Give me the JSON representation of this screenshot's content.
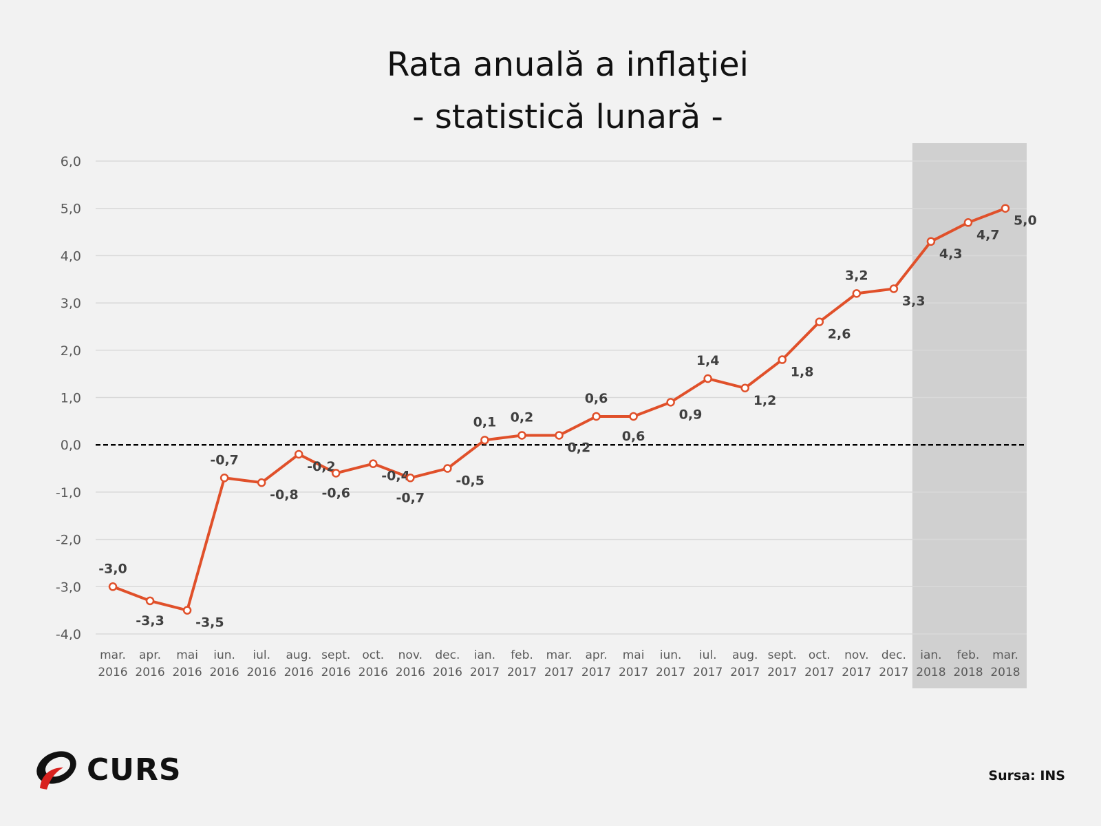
{
  "chart_data": {
    "type": "line",
    "title": "Rata anuală a inflaţiei",
    "subtitle": "- statistică lunară -",
    "xlabel": "",
    "ylabel": "",
    "ylim": [
      -4,
      6
    ],
    "yticks": [
      "6,0",
      "5,0",
      "4,0",
      "3,0",
      "2,0",
      "1,0",
      "0,0",
      "-1,0",
      "-2,0",
      "-3,0",
      "-4,0"
    ],
    "ytick_values": [
      6,
      5,
      4,
      3,
      2,
      1,
      0,
      -1,
      -2,
      -3,
      -4
    ],
    "categories": [
      [
        "mar.",
        "2016"
      ],
      [
        "apr.",
        "2016"
      ],
      [
        "mai",
        "2016"
      ],
      [
        "iun.",
        "2016"
      ],
      [
        "iul.",
        "2016"
      ],
      [
        "aug.",
        "2016"
      ],
      [
        "sept.",
        "2016"
      ],
      [
        "oct.",
        "2016"
      ],
      [
        "nov.",
        "2016"
      ],
      [
        "dec.",
        "2016"
      ],
      [
        "ian.",
        "2017"
      ],
      [
        "feb.",
        "2017"
      ],
      [
        "mar.",
        "2017"
      ],
      [
        "apr.",
        "2017"
      ],
      [
        "mai",
        "2017"
      ],
      [
        "iun.",
        "2017"
      ],
      [
        "iul.",
        "2017"
      ],
      [
        "aug.",
        "2017"
      ],
      [
        "sept.",
        "2017"
      ],
      [
        "oct.",
        "2017"
      ],
      [
        "nov.",
        "2017"
      ],
      [
        "dec.",
        "2017"
      ],
      [
        "ian.",
        "2018"
      ],
      [
        "feb.",
        "2018"
      ],
      [
        "mar.",
        "2018"
      ]
    ],
    "series": [
      {
        "name": "Rata anuală a inflaţiei",
        "values": [
          -3.0,
          -3.3,
          -3.5,
          -0.7,
          -0.8,
          -0.2,
          -0.6,
          -0.4,
          -0.7,
          -0.5,
          0.1,
          0.2,
          0.2,
          0.6,
          0.6,
          0.9,
          1.4,
          1.2,
          1.8,
          2.6,
          3.2,
          3.3,
          4.3,
          4.7,
          5.0
        ],
        "labels": [
          "-3,0",
          "-3,3",
          "-3,5",
          "-0,7",
          "-0,8",
          "-0,2",
          "-0,6",
          "-0,4",
          "-0,7",
          "-0,5",
          "0,1",
          "0,2",
          "0,2",
          "0,6",
          "0,6",
          "0,9",
          "1,4",
          "1,2",
          "1,8",
          "2,6",
          "3,2",
          "3,3",
          "4,3",
          "4,7",
          "5,0"
        ],
        "color": "#e0502a"
      }
    ],
    "highlight_range": [
      "ian. 2018",
      "mar. 2018"
    ],
    "reference_line": 0,
    "grid": true,
    "legend": "none"
  },
  "source": "Sursa: INS",
  "logo": "CURS"
}
